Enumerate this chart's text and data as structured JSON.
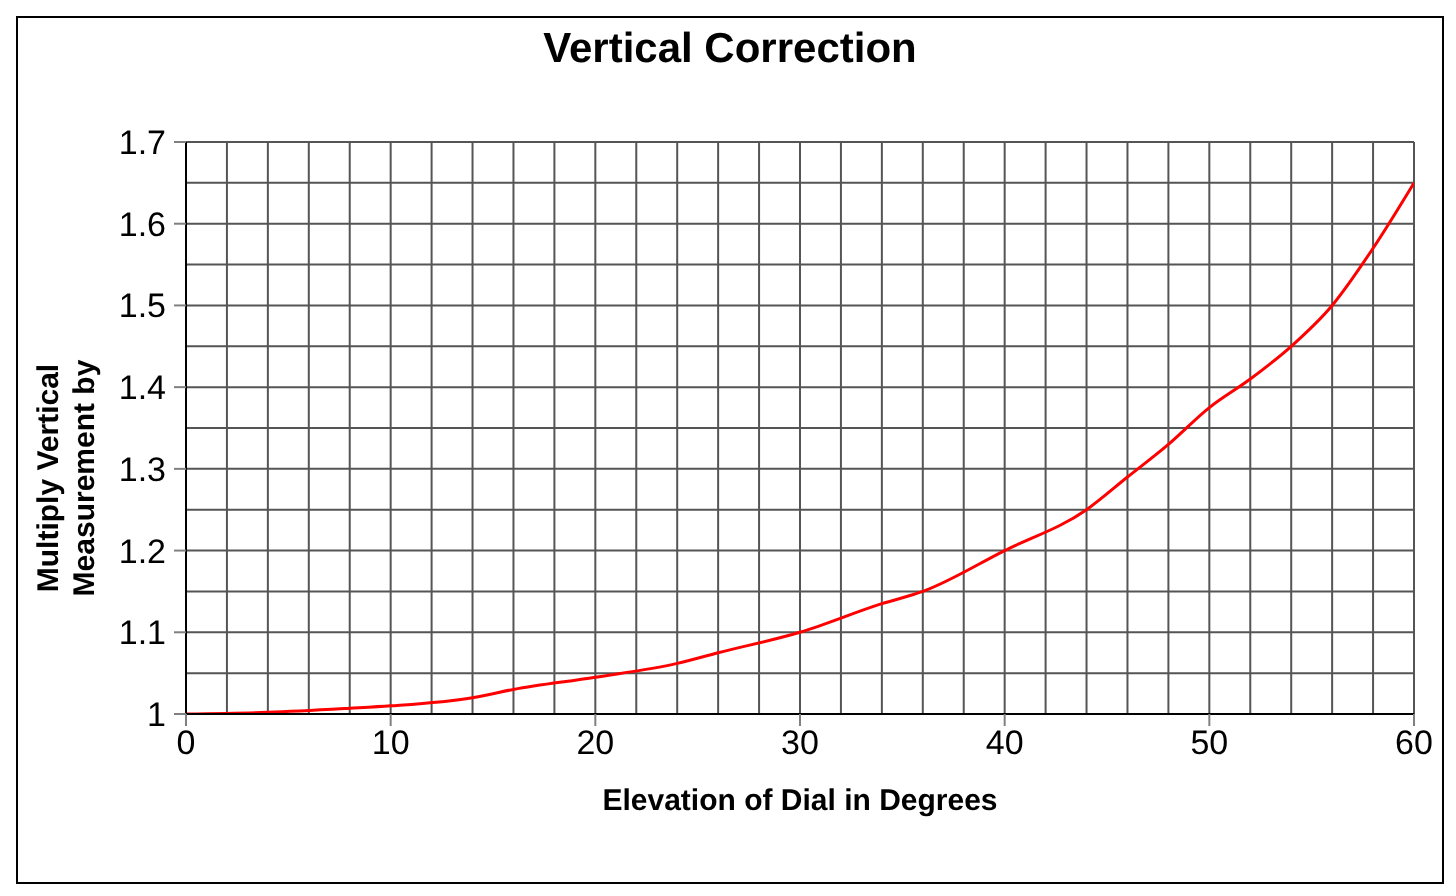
{
  "chart_data": {
    "type": "line",
    "title": "Vertical Correction",
    "xlabel": "Elevation of Dial in Degrees",
    "ylabel": "Multiply Vertical Measurement  by",
    "x": [
      0,
      4,
      8,
      10,
      14,
      16,
      20,
      24,
      26,
      30,
      34,
      36,
      40,
      44,
      46,
      48,
      50,
      52,
      54,
      56,
      58,
      60
    ],
    "series": [
      {
        "color": "#ff0000",
        "values": [
          1.0,
          1.002,
          1.007,
          1.01,
          1.02,
          1.03,
          1.045,
          1.062,
          1.075,
          1.1,
          1.135,
          1.15,
          1.2,
          1.25,
          1.29,
          1.33,
          1.375,
          1.41,
          1.45,
          1.5,
          1.57,
          1.65
        ]
      }
    ],
    "xlim": [
      0,
      60
    ],
    "ylim": [
      1,
      1.7
    ],
    "xticks": [
      0,
      {
        "value": 2,
        "label": null
      },
      {
        "value": 4,
        "label": null
      },
      {
        "value": 6,
        "label": null
      },
      {
        "value": 8,
        "label": null
      },
      10,
      {
        "value": 12,
        "label": null
      },
      {
        "value": 14,
        "label": null
      },
      {
        "value": 16,
        "label": null
      },
      {
        "value": 18,
        "label": null
      },
      20,
      {
        "value": 22,
        "label": null
      },
      {
        "value": 24,
        "label": null
      },
      {
        "value": 26,
        "label": null
      },
      {
        "value": 28,
        "label": null
      },
      30,
      {
        "value": 32,
        "label": null
      },
      {
        "value": 34,
        "label": null
      },
      {
        "value": 36,
        "label": null
      },
      {
        "value": 38,
        "label": null
      },
      40,
      {
        "value": 42,
        "label": null
      },
      {
        "value": 44,
        "label": null
      },
      {
        "value": 46,
        "label": null
      },
      {
        "value": 48,
        "label": null
      },
      50,
      {
        "value": 52,
        "label": null
      },
      {
        "value": 54,
        "label": null
      },
      {
        "value": 56,
        "label": null
      },
      {
        "value": 58,
        "label": null
      },
      60
    ],
    "yticks": [
      1,
      {
        "value": 1.05,
        "label": null
      },
      1.1,
      {
        "value": 1.15,
        "label": null
      },
      1.2,
      {
        "value": 1.25,
        "label": null
      },
      1.3,
      {
        "value": 1.35,
        "label": null
      },
      1.4,
      {
        "value": 1.45,
        "label": null
      },
      1.5,
      {
        "value": 1.55,
        "label": null
      },
      1.6,
      {
        "value": 1.65,
        "label": null
      },
      1.7
    ],
    "grid": true,
    "marker": "none",
    "line_style": "solid",
    "legend": false
  }
}
